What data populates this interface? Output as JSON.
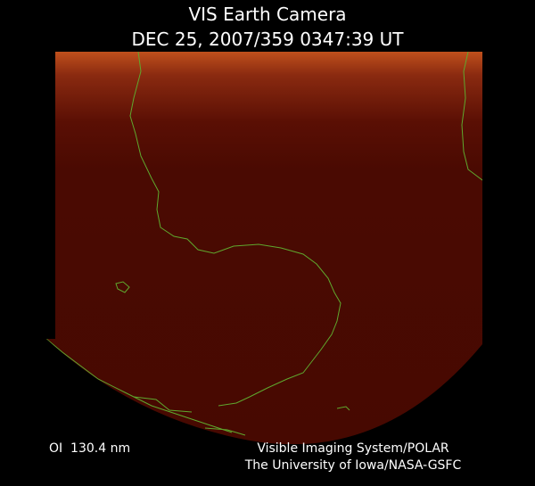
{
  "header": {
    "title": "VIS Earth Camera",
    "subtitle": "DEC 25, 2007/359 0347:39 UT"
  },
  "footer": {
    "filter": "OI  130.4 nm",
    "instrument": "Visible Imaging System/POLAR",
    "credit": "The University of Iowa/NASA-GSFC"
  }
}
